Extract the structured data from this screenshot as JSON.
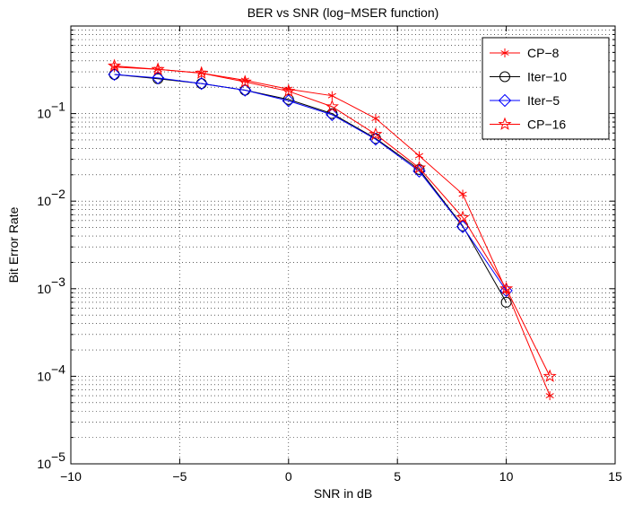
{
  "chart_data": {
    "type": "line",
    "title": "BER vs SNR (log−MSER function)",
    "xlabel": "SNR in dB",
    "ylabel": "Bit Error Rate",
    "xlim": [
      -10,
      15
    ],
    "ylim": [
      1e-05,
      1
    ],
    "yscale": "log",
    "grid": true,
    "legend_position": "top-right",
    "x_ticks": [
      -10,
      -5,
      0,
      5,
      10,
      15
    ],
    "x_tick_labels": [
      "−10",
      "−5",
      "0",
      "5",
      "10",
      "15"
    ],
    "y_ticks": [
      1e-05,
      0.0001,
      0.001,
      0.01,
      0.1
    ],
    "y_tick_labels": [
      {
        "base": "10",
        "exp": "−5"
      },
      {
        "base": "10",
        "exp": "−4"
      },
      {
        "base": "10",
        "exp": "−3"
      },
      {
        "base": "10",
        "exp": "−2"
      },
      {
        "base": "10",
        "exp": "−1"
      }
    ],
    "series": [
      {
        "name": "CP−8",
        "color": "#ff0000",
        "marker": "asterisk",
        "x": [
          -8,
          -6,
          -4,
          -2,
          0,
          2,
          4,
          6,
          8,
          10,
          12
        ],
        "y": [
          0.34,
          0.32,
          0.29,
          0.24,
          0.19,
          0.16,
          0.088,
          0.033,
          0.012,
          0.00095,
          6e-05
        ]
      },
      {
        "name": "Iter−10",
        "color": "#000000",
        "marker": "circle",
        "x": [
          -8,
          -6,
          -4,
          -2,
          0,
          2,
          4,
          6,
          8,
          10
        ],
        "y": [
          0.28,
          0.25,
          0.22,
          0.185,
          0.145,
          0.1,
          0.052,
          0.023,
          0.0052,
          0.0007
        ]
      },
      {
        "name": "Iter−5",
        "color": "#0000ff",
        "marker": "diamond",
        "x": [
          -8,
          -6,
          -4,
          -2,
          0,
          2,
          4,
          6,
          8,
          10
        ],
        "y": [
          0.28,
          0.255,
          0.22,
          0.185,
          0.14,
          0.097,
          0.051,
          0.022,
          0.0051,
          0.00095
        ]
      },
      {
        "name": "CP−16",
        "color": "#ff0000",
        "marker": "star",
        "x": [
          -8,
          -6,
          -4,
          -2,
          0,
          2,
          4,
          6,
          8,
          10,
          12
        ],
        "y": [
          0.35,
          0.32,
          0.29,
          0.23,
          0.18,
          0.12,
          0.058,
          0.024,
          0.0065,
          0.001,
          0.0001
        ]
      }
    ]
  }
}
